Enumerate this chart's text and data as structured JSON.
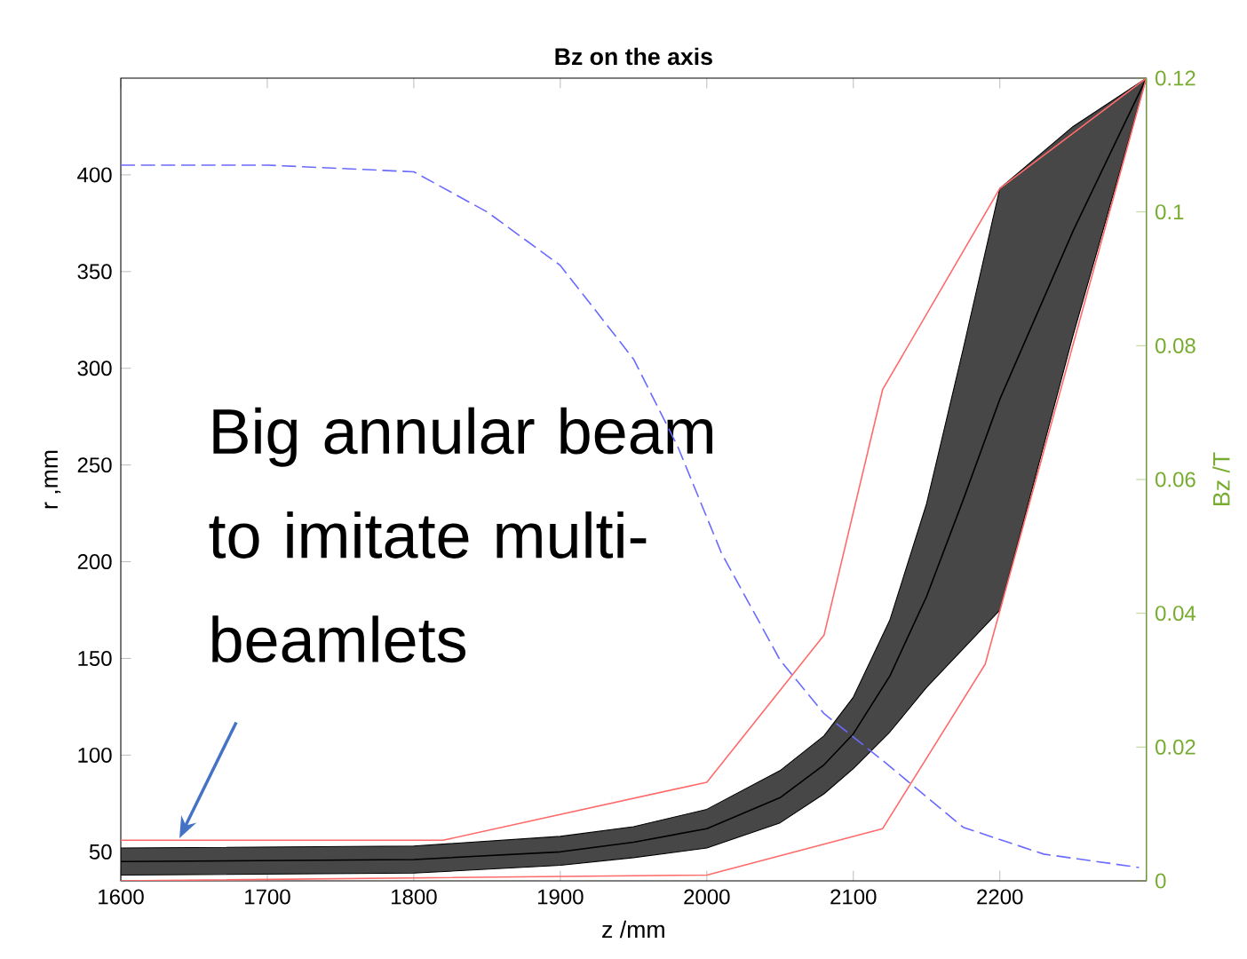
{
  "chart_data": {
    "type": "line",
    "title": "Bz on the axis",
    "xlabel": "z /mm",
    "ylabel": "r ,mm",
    "y2label": "Bz /T",
    "xlim": [
      1600,
      2300
    ],
    "xticks": [
      1600,
      1700,
      1800,
      1900,
      2000,
      2100,
      2200
    ],
    "ylim": [
      35,
      450
    ],
    "yticks": [
      50,
      100,
      150,
      200,
      250,
      300,
      350,
      400
    ],
    "y2lim": [
      0,
      0.12
    ],
    "y2ticks": [
      0,
      0.02,
      0.04,
      0.06,
      0.08,
      0.1,
      0.12
    ],
    "grid": false,
    "series": [
      {
        "color": "#000000",
        "x": [
          1600,
          1800,
          1900,
          1950,
          2000,
          2050,
          2080,
          2100,
          2125,
          2150,
          2175,
          2200,
          2250,
          2300
        ],
        "values": [
          45,
          46,
          50,
          55,
          62,
          78,
          95,
          111,
          141,
          182,
          232,
          284,
          371,
          450
        ],
        "upper": [
          52,
          53,
          58,
          63,
          72,
          92,
          110,
          130,
          170,
          230,
          310,
          393,
          425,
          450
        ],
        "lower": [
          38,
          39,
          43,
          47,
          52,
          65,
          80,
          93,
          112,
          135,
          155,
          175,
          317,
          450
        ]
      },
      {
        "color": "#ff6a6a",
        "line_style": "solid",
        "x": [
          1600,
          1820,
          2000,
          2080,
          2120,
          2200,
          2300
        ],
        "values": [
          56,
          56,
          86,
          162,
          289,
          393,
          450
        ]
      },
      {
        "color": "#ff6a6a",
        "line_style": "solid",
        "x": [
          1600,
          2000,
          2120,
          2190,
          2300
        ],
        "values": [
          35,
          38,
          62,
          147,
          450
        ]
      },
      {
        "color": "#6a6aff",
        "line_style": "dashed",
        "axis": "y2",
        "x": [
          1600,
          1700,
          1800,
          1850,
          1900,
          1950,
          1980,
          2010,
          2050,
          2080,
          2120,
          2175,
          2230,
          2295
        ],
        "values": [
          0.107,
          0.107,
          0.106,
          0.1,
          0.092,
          0.078,
          0.065,
          0.049,
          0.033,
          0.025,
          0.018,
          0.008,
          0.004,
          0.002
        ]
      }
    ],
    "annotations": [
      {
        "text": "Big annular beam to imitate multi-beamlets",
        "x": 1640,
        "y": 57
      }
    ]
  }
}
